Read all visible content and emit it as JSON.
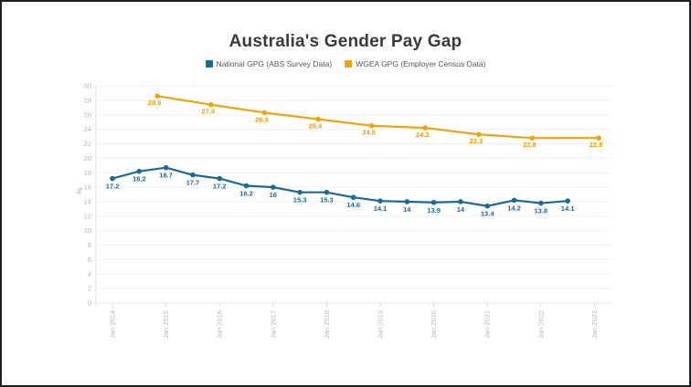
{
  "window": {
    "background": "#ffffff",
    "frame_border": "#1f1f1f"
  },
  "header": {
    "title": "Australia's Gender Pay Gap",
    "legend": [
      {
        "label": "National GPG (ABS Survey Data)",
        "color": "#1d6996"
      },
      {
        "label": "WGEA GPG (Employer Census Data)",
        "color": "#f0a30b"
      }
    ]
  },
  "chart_data": {
    "type": "line",
    "title": "Australia's Gender Pay Gap",
    "xlabel": "",
    "ylabel": "%",
    "ylim": [
      0,
      30
    ],
    "ytick_step": 2,
    "grid": "horizontal",
    "legend_position": "top-center",
    "marker": "circle",
    "x_axis": {
      "tick_labels": [
        "Jan 2014",
        "Jan 2015",
        "Jan 2016",
        "Jan 2017",
        "Jan 2018",
        "Jan 2019",
        "Jan 2020",
        "Jan 2021",
        "Jan 2022",
        "Jan 2023"
      ],
      "tick_positions": [
        0,
        1,
        2,
        3,
        4,
        5,
        6,
        7,
        8,
        9
      ],
      "label_rotation": -90
    },
    "series": [
      {
        "id": "national-gpg",
        "name": "National GPG (ABS Survey Data)",
        "color": "#1d6996",
        "label_color": "#1d6996",
        "points": [
          {
            "x": 0.0,
            "y": 17.2,
            "label": "17.2"
          },
          {
            "x": 0.5,
            "y": 18.2,
            "label": "18.2"
          },
          {
            "x": 1.0,
            "y": 18.7,
            "label": "18.7"
          },
          {
            "x": 1.5,
            "y": 17.7,
            "label": "17.7"
          },
          {
            "x": 2.0,
            "y": 17.2,
            "label": "17.2"
          },
          {
            "x": 2.5,
            "y": 16.2,
            "label": "16.2"
          },
          {
            "x": 3.0,
            "y": 16.0,
            "label": "16"
          },
          {
            "x": 3.5,
            "y": 15.3,
            "label": "15.3"
          },
          {
            "x": 4.0,
            "y": 15.3,
            "label": "15.3"
          },
          {
            "x": 4.5,
            "y": 14.6,
            "label": "14.6"
          },
          {
            "x": 5.0,
            "y": 14.1,
            "label": "14.1"
          },
          {
            "x": 5.5,
            "y": 14.0,
            "label": "14"
          },
          {
            "x": 6.0,
            "y": 13.9,
            "label": "13.9"
          },
          {
            "x": 6.5,
            "y": 14.0,
            "label": "14"
          },
          {
            "x": 7.0,
            "y": 13.4,
            "label": "13.4"
          },
          {
            "x": 7.5,
            "y": 14.2,
            "label": "14.2"
          },
          {
            "x": 8.0,
            "y": 13.8,
            "label": "13.8"
          },
          {
            "x": 8.5,
            "y": 14.1,
            "label": "14.1"
          }
        ]
      },
      {
        "id": "wgea-gpg",
        "name": "WGEA GPG (Employer Census Data)",
        "color": "#f0a30b",
        "label_color": "#eb9e00",
        "points": [
          {
            "x": 0.84,
            "y": 28.6,
            "label": "28.6"
          },
          {
            "x": 1.84,
            "y": 27.4,
            "label": "27.4"
          },
          {
            "x": 2.84,
            "y": 26.3,
            "label": "26.3"
          },
          {
            "x": 3.84,
            "y": 25.4,
            "label": "25.4"
          },
          {
            "x": 4.84,
            "y": 24.5,
            "label": "24.5"
          },
          {
            "x": 5.84,
            "y": 24.2,
            "label": "24.2"
          },
          {
            "x": 6.84,
            "y": 23.3,
            "label": "23.3"
          },
          {
            "x": 7.84,
            "y": 22.8,
            "label": "22.8"
          },
          {
            "x": 9.08,
            "y": 22.8,
            "label": "22.8"
          }
        ]
      }
    ]
  }
}
